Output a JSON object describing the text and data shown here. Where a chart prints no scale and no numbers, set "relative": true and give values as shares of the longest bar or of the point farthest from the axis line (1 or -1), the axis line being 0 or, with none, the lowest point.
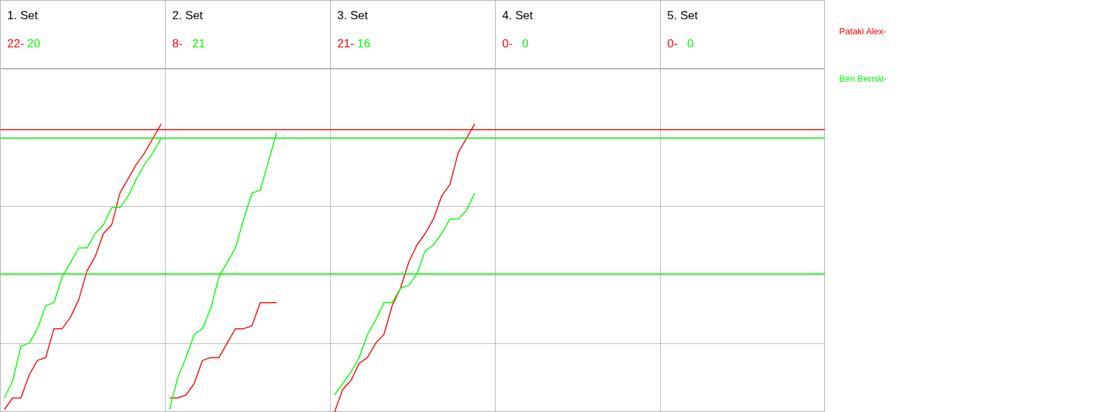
{
  "chart_data": {
    "type": "line",
    "relative": true,
    "tick_labels": false,
    "grid": true,
    "categories": [
      null,
      null,
      null,
      null,
      null,
      null,
      null,
      null,
      null,
      null,
      null,
      null,
      null,
      null,
      null,
      null,
      null,
      null,
      null,
      null,
      null,
      null,
      null,
      null,
      null,
      null,
      null,
      null,
      null,
      null,
      null,
      null,
      null,
      null,
      null,
      null,
      null,
      null,
      null,
      null,
      null,
      null,
      null,
      null,
      null,
      null,
      null,
      null,
      null,
      null,
      null,
      null,
      null,
      null,
      null,
      null,
      null,
      null,
      null,
      null,
      null,
      null,
      null,
      null,
      null,
      null,
      null,
      null,
      null,
      null,
      null,
      null,
      null,
      null,
      null,
      null,
      null,
      null,
      null,
      null,
      null,
      null,
      null,
      null,
      null,
      null,
      null,
      null,
      null,
      null,
      null,
      null,
      null,
      null,
      null,
      null,
      null,
      null,
      null,
      null
    ],
    "annotations": [
      "1. Set",
      "22-",
      "20",
      "2. Set",
      "8-",
      "21",
      "3. Set",
      "21-",
      "16",
      "4. Set",
      "0-",
      "0",
      "5. Set",
      "0-",
      "0"
    ],
    "ref_lines": [
      {
        "axis": "y",
        "value": 0.98,
        "color": "#ff0000"
      },
      {
        "axis": "y",
        "value": 0.95,
        "color": "#00ff00"
      },
      {
        "axis": "y",
        "value": 0.48,
        "color": "#00ff00"
      }
    ],
    "series": [
      {
        "name": "Pataki Alex-",
        "color": "#ff0000",
        "values": [
          0.01,
          0.05,
          0.05,
          0.13,
          0.18,
          0.19,
          0.29,
          0.29,
          0.33,
          0.39,
          0.49,
          0.54,
          0.62,
          0.65,
          0.76,
          0.81,
          0.86,
          0.9,
          0.95,
          1,
          null,
          null,
          null,
          null,
          null,
          null,
          null,
          null,
          null,
          null,
          null,
          null,
          null,
          null,
          null,
          null,
          null,
          null,
          null,
          null,
          null,
          null,
          null,
          null,
          null,
          null,
          null,
          null,
          null,
          null,
          null,
          null,
          null,
          null,
          null,
          null,
          null,
          null,
          null,
          null,
          null,
          null,
          null,
          null,
          null,
          null,
          null,
          null,
          null,
          null,
          null,
          null,
          null,
          null,
          null,
          null,
          null,
          null,
          null,
          null,
          null,
          null,
          null,
          null,
          null,
          null,
          null,
          null,
          null,
          null,
          null,
          null,
          null,
          null,
          null,
          null,
          null,
          null,
          null,
          null
        ]
      },
      {
        "name": "Béri  Bernát-",
        "color": "#00ff00",
        "values": [
          0.05,
          0.11,
          0.23,
          0.24,
          0.29,
          0.37,
          0.38,
          0.47,
          0.52,
          0.57,
          0.57,
          0.62,
          0.65,
          0.71,
          0.71,
          0.75,
          0.81,
          0.86,
          0.9,
          0.95,
          null,
          null,
          null,
          null,
          null,
          null,
          null,
          null,
          null,
          null,
          null,
          null,
          null,
          null,
          null,
          null,
          null,
          null,
          null,
          null,
          null,
          null,
          null,
          null,
          null,
          null,
          null,
          null,
          null,
          null,
          null,
          null,
          null,
          null,
          null,
          null,
          null,
          null,
          null,
          null,
          null,
          null,
          null,
          null,
          null,
          null,
          null,
          null,
          null,
          null,
          null,
          null,
          null,
          null,
          null,
          null,
          null,
          null,
          null,
          null,
          null,
          null,
          null,
          null,
          null,
          null,
          null,
          null,
          null,
          null,
          null,
          null,
          null,
          null,
          null,
          null,
          null,
          null,
          null,
          null
        ]
      },
      {
        "color": "#ff0000",
        "values": [
          null,
          null,
          null,
          null,
          null,
          null,
          null,
          null,
          null,
          null,
          null,
          null,
          null,
          null,
          null,
          null,
          null,
          null,
          null,
          null,
          0.05,
          0.05,
          0.06,
          0.1,
          0.18,
          0.19,
          0.19,
          0.24,
          0.29,
          0.29,
          0.3,
          0.38,
          0.38,
          0.38,
          null,
          null,
          null,
          null,
          null,
          null,
          null,
          null,
          null,
          null,
          null,
          null,
          null,
          null,
          null,
          null,
          null,
          null,
          null,
          null,
          null,
          null,
          null,
          null,
          null,
          null,
          null,
          null,
          null,
          null,
          null,
          null,
          null,
          null,
          null,
          null,
          null,
          null,
          null,
          null,
          null,
          null,
          null,
          null,
          null,
          null,
          null,
          null,
          null,
          null,
          null,
          null,
          null,
          null,
          null,
          null,
          null,
          null,
          null,
          null,
          null,
          null,
          null,
          null,
          null,
          null
        ]
      },
      {
        "color": "#00ff00",
        "values": [
          null,
          null,
          null,
          null,
          null,
          null,
          null,
          null,
          null,
          null,
          null,
          null,
          null,
          null,
          null,
          null,
          null,
          null,
          null,
          null,
          0.01,
          0.12,
          0.19,
          0.27,
          0.29,
          0.36,
          0.47,
          0.52,
          0.57,
          0.67,
          0.76,
          0.77,
          0.87,
          0.97,
          null,
          null,
          null,
          null,
          null,
          null,
          null,
          null,
          null,
          null,
          null,
          null,
          null,
          null,
          null,
          null,
          null,
          null,
          null,
          null,
          null,
          null,
          null,
          null,
          null,
          null,
          null,
          null,
          null,
          null,
          null,
          null,
          null,
          null,
          null,
          null,
          null,
          null,
          null,
          null,
          null,
          null,
          null,
          null,
          null,
          null,
          null,
          null,
          null,
          null,
          null,
          null,
          null,
          null,
          null,
          null,
          null,
          null,
          null,
          null,
          null,
          null,
          null,
          null,
          null,
          null
        ]
      },
      {
        "color": "#ff0000",
        "values": [
          null,
          null,
          null,
          null,
          null,
          null,
          null,
          null,
          null,
          null,
          null,
          null,
          null,
          null,
          null,
          null,
          null,
          null,
          null,
          null,
          null,
          null,
          null,
          null,
          null,
          null,
          null,
          null,
          null,
          null,
          null,
          null,
          null,
          null,
          null,
          null,
          null,
          null,
          null,
          null,
          0,
          0.08,
          0.11,
          0.17,
          0.19,
          0.24,
          0.27,
          0.37,
          0.43,
          0.52,
          0.58,
          0.62,
          0.67,
          0.75,
          0.79,
          0.9,
          0.95,
          1,
          null,
          null,
          null,
          null,
          null,
          null,
          null,
          null,
          null,
          null,
          null,
          null,
          null,
          null,
          null,
          null,
          null,
          null,
          null,
          null,
          null,
          null,
          null,
          null,
          null,
          null,
          null,
          null,
          null,
          null,
          null,
          null,
          null,
          null,
          null,
          null,
          null,
          null,
          null,
          null,
          null,
          null
        ]
      },
      {
        "color": "#00ff00",
        "values": [
          null,
          null,
          null,
          null,
          null,
          null,
          null,
          null,
          null,
          null,
          null,
          null,
          null,
          null,
          null,
          null,
          null,
          null,
          null,
          null,
          null,
          null,
          null,
          null,
          null,
          null,
          null,
          null,
          null,
          null,
          null,
          null,
          null,
          null,
          null,
          null,
          null,
          null,
          null,
          null,
          0.06,
          0.1,
          0.14,
          0.19,
          0.27,
          0.32,
          0.38,
          0.38,
          0.43,
          0.44,
          0.48,
          0.56,
          0.58,
          0.62,
          0.67,
          0.67,
          0.7,
          0.76,
          null,
          null,
          null,
          null,
          null,
          null,
          null,
          null,
          null,
          null,
          null,
          null,
          null,
          null,
          null,
          null,
          null,
          null,
          null,
          null,
          null,
          null,
          null,
          null,
          null,
          null,
          null,
          null,
          null,
          null,
          null,
          null,
          null,
          null,
          null,
          null,
          null,
          null,
          null,
          null,
          null,
          null
        ]
      }
    ]
  }
}
